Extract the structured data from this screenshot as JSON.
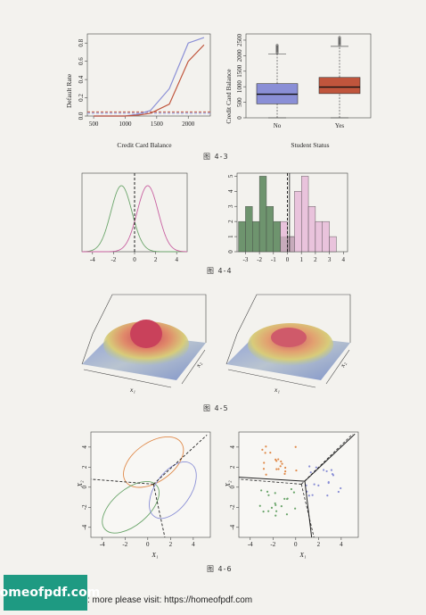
{
  "captions": {
    "fig43": "图  4-3",
    "fig44": "图  4-4",
    "fig45": "图  4-5",
    "fig46": "图  4-6"
  },
  "footer": {
    "badge": "homeofpdf.com",
    "text": ": more please visit: https://homeofpdf.com"
  },
  "chart_data": [
    {
      "type": "line",
      "xlabel": "Credit Card Balance",
      "ylabel": "Default Rate",
      "xlim": [
        400,
        2350
      ],
      "ylim": [
        0,
        0.9
      ],
      "xticks": [
        "500",
        "1000",
        "1500",
        "2000"
      ],
      "yticks": [
        "0.0",
        "0.2",
        "0.4",
        "0.6",
        "0.8"
      ],
      "series": [
        {
          "color": "#8a8fd6",
          "x": [
            500,
            1000,
            1200,
            1400,
            1700,
            2000,
            2250
          ],
          "values": [
            0.0,
            0.0,
            0.02,
            0.06,
            0.3,
            0.8,
            0.86
          ]
        },
        {
          "color": "#c0553c",
          "x": [
            500,
            1000,
            1200,
            1400,
            1700,
            2000,
            2250
          ],
          "values": [
            0.0,
            0.0,
            0.01,
            0.03,
            0.13,
            0.6,
            0.78
          ]
        }
      ],
      "hlines": [
        {
          "color": "#8a8fd6",
          "y": 0.03
        },
        {
          "color": "#c0553c",
          "y": 0.045
        }
      ]
    },
    {
      "type": "boxplot",
      "xlabel": "Student Status",
      "ylabel": "Credit Card Balance",
      "categories": [
        "No",
        "Yes"
      ],
      "yticks": [
        "0",
        "500",
        "1000",
        "1500",
        "2000",
        "2500"
      ],
      "ylim": [
        0,
        2700
      ],
      "boxes": [
        {
          "color": "#8a8fd6",
          "q1": 450,
          "median": 760,
          "q3": 1100,
          "whisker_low": 0,
          "whisker_high": 2050
        },
        {
          "color": "#c0553c",
          "q1": 780,
          "median": 990,
          "q3": 1300,
          "whisker_low": 0,
          "whisker_high": 2300
        }
      ]
    },
    {
      "type": "line",
      "xticks": [
        "-4",
        "-2",
        "0",
        "2",
        "4"
      ],
      "xlim": [
        -5,
        5
      ],
      "series": [
        {
          "color": "#6aa56a",
          "mean": -1.25,
          "sd": 1
        },
        {
          "color": "#c85fa0",
          "mean": 1.25,
          "sd": 1
        }
      ],
      "vline": 0
    },
    {
      "type": "bar",
      "xticks": [
        "-3",
        "-2",
        "-1",
        "0",
        "1",
        "2",
        "3",
        "4"
      ],
      "yticks": [
        "0",
        "1",
        "2",
        "3",
        "4",
        "5"
      ],
      "series": [
        {
          "color": "#5f8a5f",
          "bins": [
            -3.5,
            -3,
            -2.5,
            -2,
            -1.5,
            -1,
            -0.5,
            0,
            0.5
          ],
          "values": [
            2,
            3,
            2,
            5,
            3,
            2,
            1,
            1
          ]
        },
        {
          "color": "#e6b3d6",
          "bins": [
            -0.5,
            0,
            0.5,
            1,
            1.5,
            2,
            2.5,
            3,
            3.5
          ],
          "values": [
            2,
            1,
            4,
            5,
            3,
            2,
            2,
            1
          ]
        }
      ],
      "vline": 0
    },
    {
      "type": "surface",
      "xlabel": "x₁",
      "ylabel": "x₂"
    },
    {
      "type": "surface",
      "xlabel": "x₁",
      "ylabel": "x₂"
    },
    {
      "type": "scatter",
      "xlabel": "X₁",
      "ylabel": "X₂",
      "xticks": [
        "-4",
        "-2",
        "0",
        "2",
        "4"
      ],
      "yticks": [
        "-4",
        "-2",
        "0",
        "2",
        "4"
      ]
    },
    {
      "type": "scatter",
      "xlabel": "X₁",
      "ylabel": "X₂",
      "xticks": [
        "-4",
        "-2",
        "0",
        "2",
        "4"
      ],
      "yticks": [
        "-4",
        "-2",
        "0",
        "2",
        "4"
      ]
    }
  ]
}
